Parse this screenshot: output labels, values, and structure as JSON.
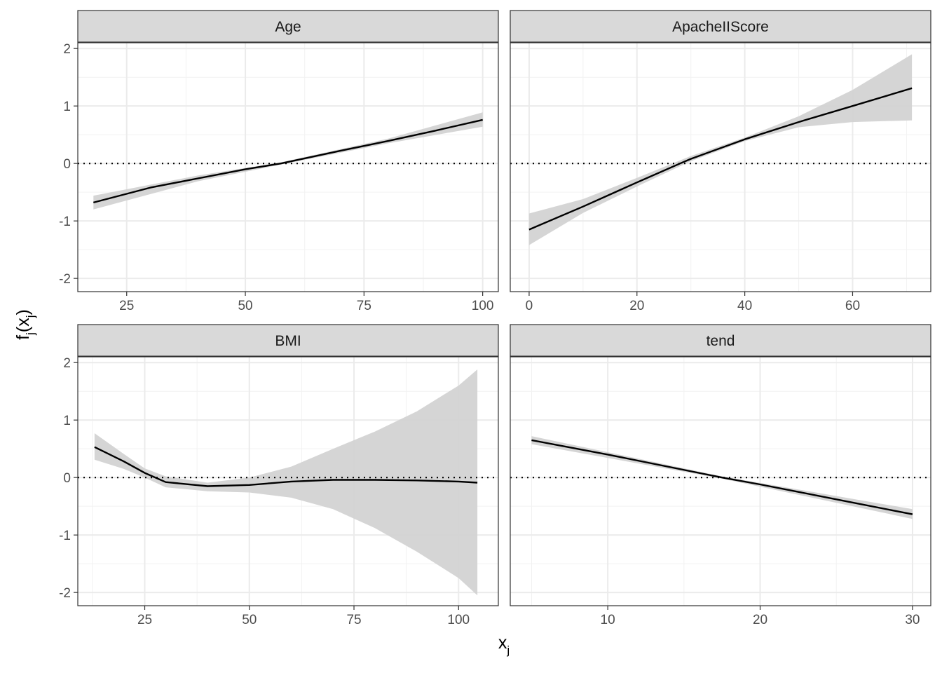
{
  "chart_data": {
    "type": "line",
    "xlabel": "x",
    "xlabel_sub": "j",
    "ylabel_parts": [
      "f",
      "j",
      "(x",
      "j",
      ")"
    ],
    "colors": {
      "line": "#000000",
      "band": "#d3d3d3",
      "strip": "#d9d9d9",
      "grid": "#ebebeb"
    },
    "reference_line": {
      "y": 0,
      "style": "dotted"
    },
    "y_ticks": [
      -2,
      -1,
      0,
      1,
      2
    ],
    "panels": [
      {
        "title": "Age",
        "xlim": [
          14.7,
          103.3
        ],
        "ylim": [
          -2.23,
          2.1
        ],
        "x_ticks": [
          25,
          50,
          75,
          100
        ],
        "line": {
          "x": [
            18,
            30,
            40,
            50,
            57.5,
            70,
            80,
            90,
            100
          ],
          "y": [
            -0.68,
            -0.42,
            -0.26,
            -0.1,
            0.0,
            0.22,
            0.39,
            0.57,
            0.76
          ]
        },
        "band": {
          "x": [
            18,
            40,
            57.5,
            80,
            100
          ],
          "lower": [
            -0.8,
            -0.31,
            -0.02,
            0.35,
            0.64
          ],
          "upper": [
            -0.56,
            -0.21,
            0.02,
            0.43,
            0.89
          ]
        }
      },
      {
        "title": "ApacheIIScore",
        "xlim": [
          -3.5,
          74.5
        ],
        "ylim": [
          -2.23,
          2.1
        ],
        "x_ticks": [
          0,
          20,
          40,
          60
        ],
        "line": {
          "x": [
            0,
            10,
            20,
            28,
            30,
            40,
            50,
            60,
            71
          ],
          "y": [
            -1.15,
            -0.75,
            -0.33,
            0.0,
            0.08,
            0.42,
            0.72,
            1.0,
            1.31
          ]
        },
        "band": {
          "x": [
            0,
            10,
            20,
            30,
            40,
            50,
            60,
            71
          ],
          "lower": [
            -1.42,
            -0.86,
            -0.4,
            0.04,
            0.39,
            0.63,
            0.72,
            0.75
          ],
          "upper": [
            -0.87,
            -0.62,
            -0.25,
            0.13,
            0.45,
            0.82,
            1.28,
            1.9
          ]
        }
      },
      {
        "title": "BMI",
        "xlim": [
          9.0,
          109.5
        ],
        "ylim": [
          -2.23,
          2.1
        ],
        "x_ticks": [
          25,
          50,
          75,
          100
        ],
        "line": {
          "x": [
            13,
            20,
            25,
            30,
            40,
            50,
            60,
            70,
            80,
            90,
            100,
            104.5
          ],
          "y": [
            0.53,
            0.28,
            0.08,
            -0.08,
            -0.15,
            -0.13,
            -0.07,
            -0.04,
            -0.04,
            -0.05,
            -0.07,
            -0.09
          ]
        },
        "band": {
          "x": [
            13,
            20,
            25,
            30,
            40,
            50,
            60,
            70,
            80,
            90,
            100,
            104.5
          ],
          "lower": [
            0.31,
            0.15,
            0.0,
            -0.17,
            -0.24,
            -0.26,
            -0.35,
            -0.55,
            -0.88,
            -1.29,
            -1.75,
            -2.05
          ],
          "upper": [
            0.77,
            0.41,
            0.16,
            0.02,
            -0.09,
            0.0,
            0.19,
            0.5,
            0.8,
            1.15,
            1.6,
            1.88
          ]
        }
      },
      {
        "title": "tend",
        "xlim": [
          3.6,
          31.2
        ],
        "ylim": [
          -2.23,
          2.1
        ],
        "x_ticks": [
          10,
          20,
          30
        ],
        "line": {
          "x": [
            5,
            10,
            17.5,
            20,
            25,
            30
          ],
          "y": [
            0.65,
            0.4,
            0.0,
            -0.12,
            -0.38,
            -0.64
          ]
        },
        "band": {
          "x": [
            5,
            17.5,
            30
          ],
          "lower": [
            0.58,
            -0.02,
            -0.72
          ],
          "upper": [
            0.72,
            0.02,
            -0.55
          ]
        }
      }
    ]
  }
}
